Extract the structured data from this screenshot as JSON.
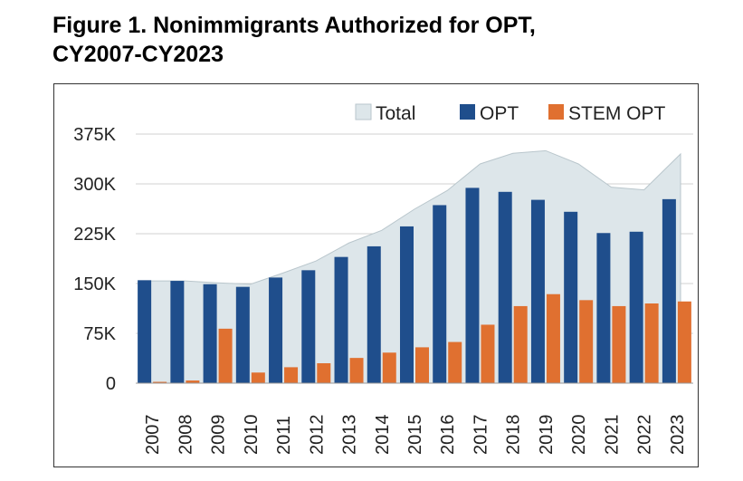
{
  "figure": {
    "title_line1": "Figure 1. Nonimmigrants Authorized for OPT,",
    "title_line2": "CY2007-CY2023"
  },
  "colors": {
    "total": "#dde6ea",
    "total_edge": "#b9c6cc",
    "opt": "#1f4e8c",
    "stem_opt": "#e07030",
    "grid": "#d0d0d0"
  },
  "chart_data": {
    "type": "bar",
    "title": "Figure 1. Nonimmigrants Authorized for OPT, CY2007-CY2023",
    "xlabel": "",
    "ylabel": "",
    "categories": [
      "2007",
      "2008",
      "2009",
      "2010",
      "2011",
      "2012",
      "2013",
      "2014",
      "2015",
      "2016",
      "2017",
      "2018",
      "2019",
      "2020",
      "2021",
      "2022",
      "2023"
    ],
    "ylim": [
      0,
      375000
    ],
    "yticks": [
      0,
      75000,
      150000,
      225000,
      300000,
      375000
    ],
    "ytick_labels": [
      "0",
      "75K",
      "150K",
      "225K",
      "300K",
      "375K"
    ],
    "grid": true,
    "legend_position": "top-right",
    "series": [
      {
        "name": "Total",
        "kind": "area",
        "values": [
          154000,
          154000,
          151000,
          149000,
          166000,
          184000,
          211000,
          230000,
          262000,
          290000,
          330000,
          346000,
          350000,
          330000,
          295000,
          291000,
          345000
        ]
      },
      {
        "name": "OPT",
        "kind": "bar",
        "values": [
          155000,
          154000,
          149000,
          145000,
          159000,
          170000,
          190000,
          206000,
          236000,
          268000,
          294000,
          288000,
          276000,
          258000,
          226000,
          228000,
          277000
        ]
      },
      {
        "name": "STEM OPT",
        "kind": "bar",
        "values": [
          2000,
          4000,
          82000,
          16000,
          24000,
          30000,
          38000,
          46000,
          54000,
          62000,
          88000,
          116000,
          134000,
          125000,
          116000,
          120000,
          123000
        ]
      }
    ]
  }
}
